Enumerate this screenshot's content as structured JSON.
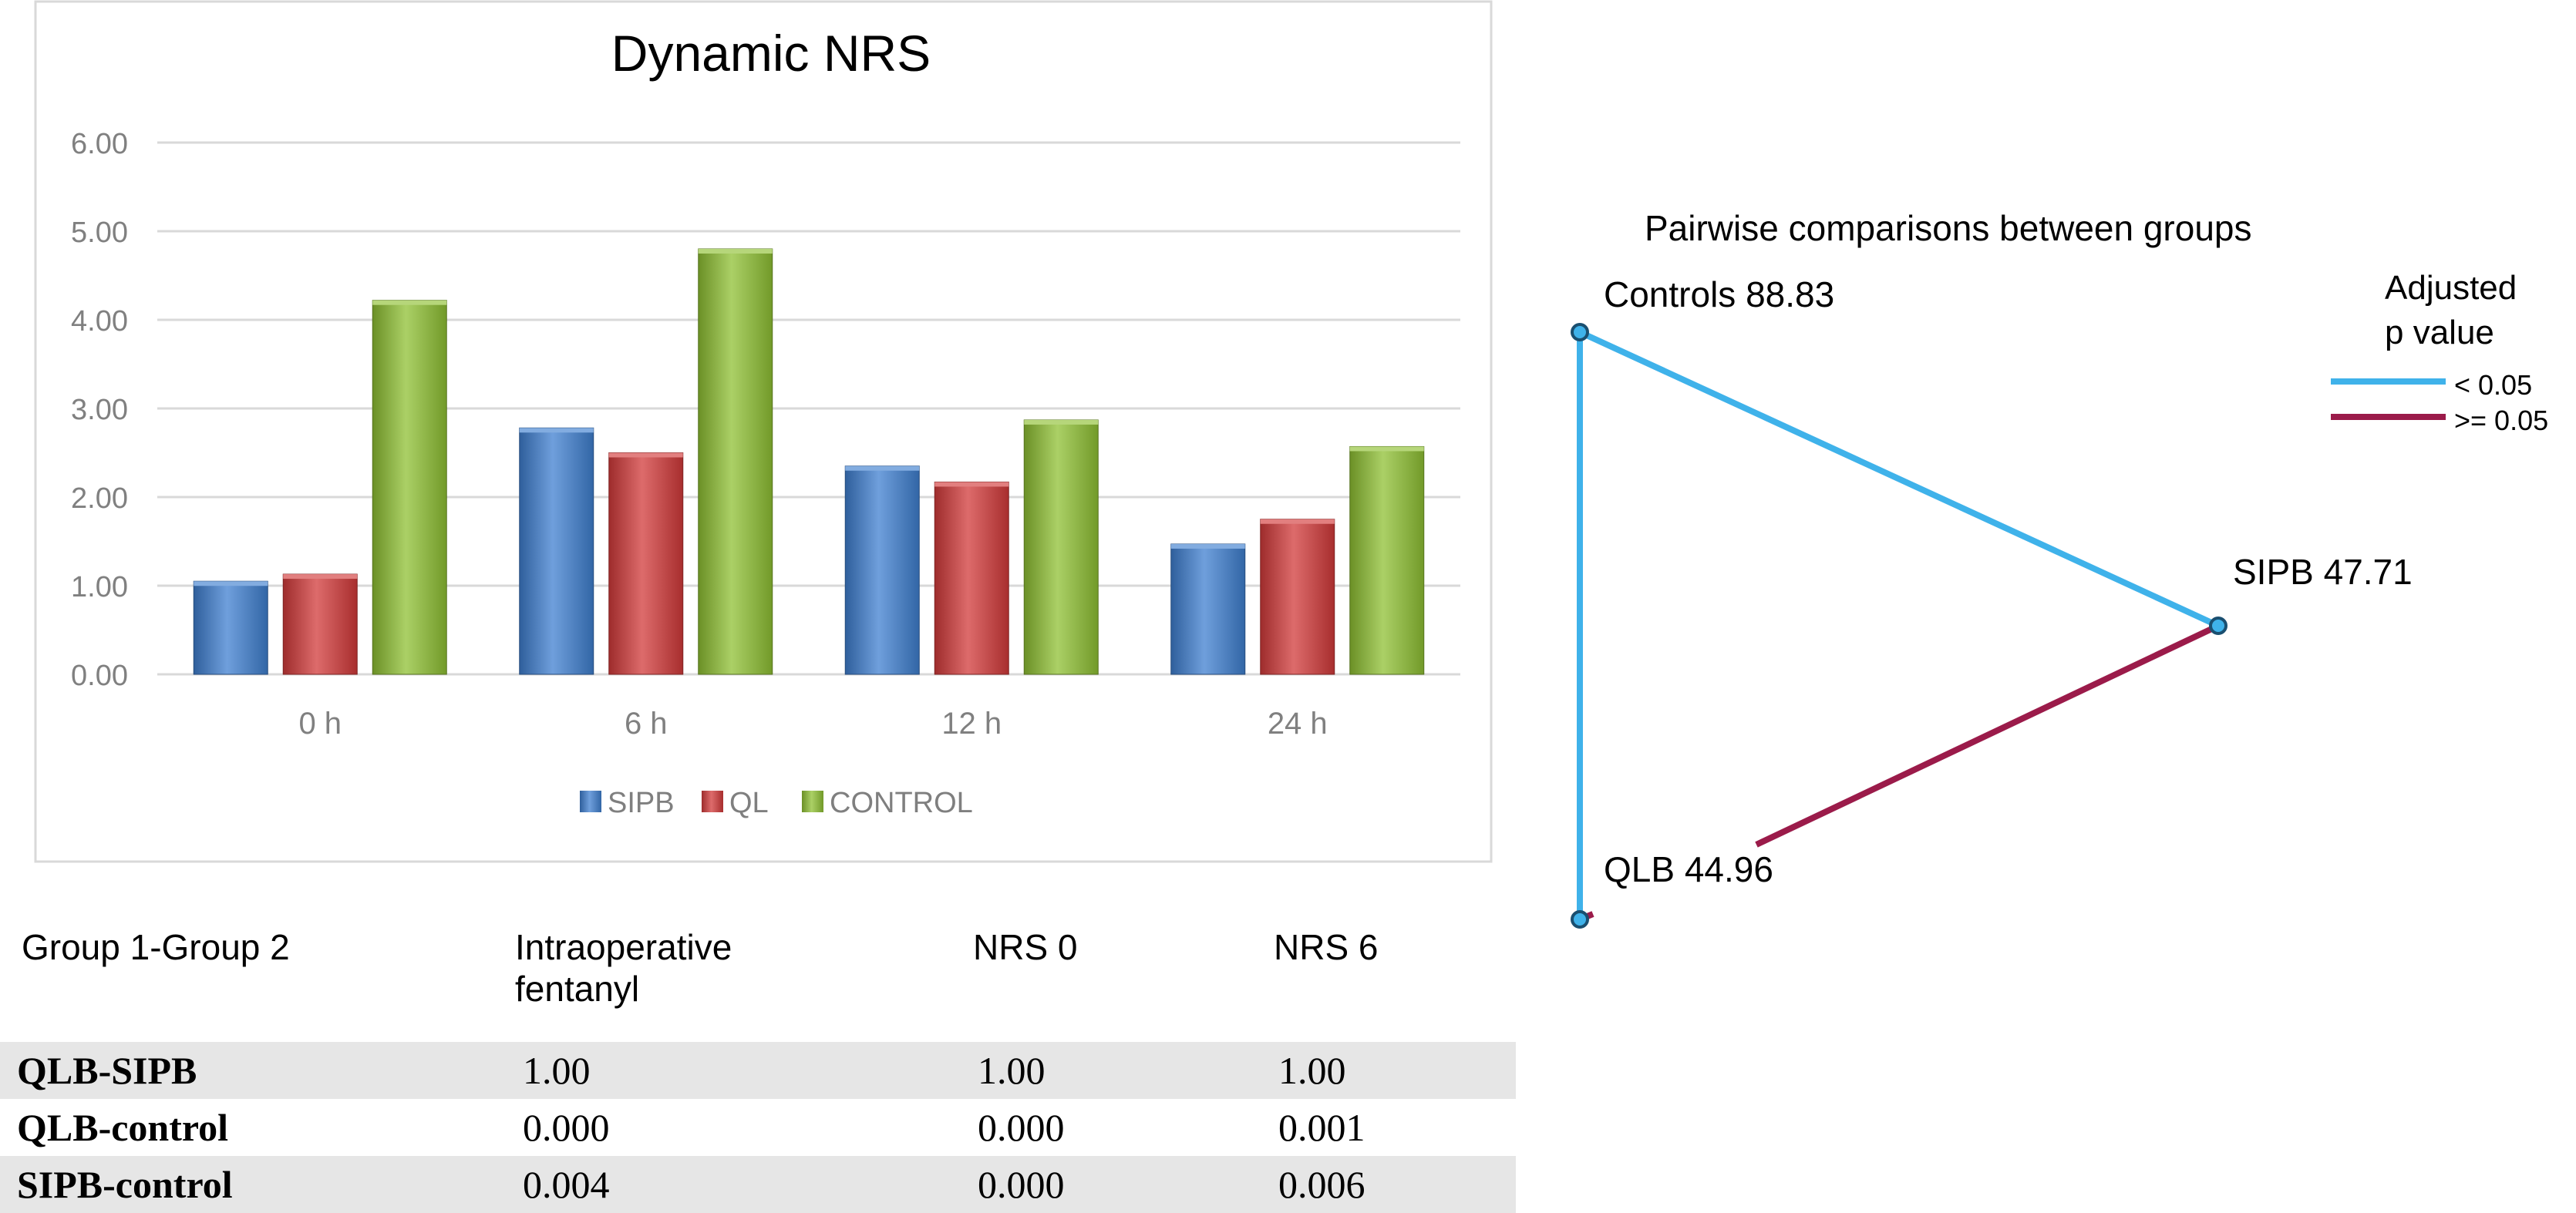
{
  "chart_data": [
    {
      "type": "bar",
      "title": "Dynamic NRS",
      "categories": [
        "0 h",
        "6 h",
        "12 h",
        "24 h"
      ],
      "series": [
        {
          "name": "SIPB",
          "values": [
            1.05,
            2.78,
            2.35,
            1.47
          ],
          "color": "#3f7fd0"
        },
        {
          "name": "QL",
          "values": [
            1.13,
            2.5,
            2.17,
            1.75
          ],
          "color": "#d23a3a"
        },
        {
          "name": "CONTROL",
          "values": [
            4.22,
            4.8,
            2.87,
            2.57
          ],
          "color": "#8fc033"
        }
      ],
      "yticks": [
        "0.00",
        "1.00",
        "2.00",
        "3.00",
        "4.00",
        "5.00",
        "6.00"
      ],
      "ylim": [
        0,
        6
      ],
      "grid": true,
      "legend_position": "bottom"
    },
    {
      "type": "network",
      "title": "Pairwise comparisons between groups",
      "nodes": [
        {
          "id": "controls",
          "label": "Controls 88.83"
        },
        {
          "id": "sipb",
          "label": "SIPB 47.71"
        },
        {
          "id": "qlb",
          "label": "QLB 44.96"
        }
      ],
      "edges": [
        {
          "from": "controls",
          "to": "sipb",
          "category": "< 0.05"
        },
        {
          "from": "controls",
          "to": "qlb",
          "category": "< 0.05"
        },
        {
          "from": "sipb",
          "to": "qlb",
          "category": ">= 0.05"
        }
      ],
      "legend": {
        "title_line1": "Adjusted",
        "title_line2": "p value",
        "items": [
          {
            "label": "< 0.05",
            "color": "#3fb2ea"
          },
          {
            "label": ">= 0.05",
            "color": "#9b1b4a"
          }
        ]
      }
    },
    {
      "type": "table",
      "header": {
        "c0": "Group 1-Group 2",
        "c1_line1": "Intraoperative",
        "c1_line2": "fentanyl",
        "c2": "NRS 0",
        "c3": "NRS 6"
      },
      "rows": [
        [
          "QLB-SIPB",
          "1.00",
          "1.00",
          "1.00"
        ],
        [
          "QLB-control",
          "0.000",
          "0.000",
          "0.001"
        ],
        [
          "SIPB-control",
          "0.004",
          "0.000",
          "0.006"
        ]
      ]
    }
  ]
}
